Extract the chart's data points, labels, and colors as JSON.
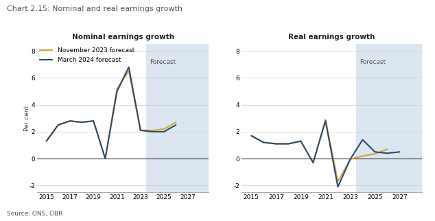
{
  "title": "Chart 2.15: Nominal and real earnings growth",
  "subtitle_left": "Nominal earnings growth",
  "subtitle_right": "Real earnings growth",
  "ylabel": "Per cent",
  "source": "Source: ONS, OBR",
  "forecast_label": "Forecast",
  "forecast_start": 2023.5,
  "xlim": [
    2014.2,
    2028.8
  ],
  "ylim": [
    -2.5,
    8.5
  ],
  "yticks": [
    -2,
    0,
    2,
    4,
    6,
    8
  ],
  "xticks": [
    2015,
    2017,
    2019,
    2021,
    2023,
    2025,
    2027
  ],
  "nom_nov_x": [
    2015,
    2016,
    2017,
    2018,
    2019,
    2020,
    2021,
    2022,
    2023,
    2024,
    2025,
    2026,
    2027,
    2028
  ],
  "nom_nov_y": [
    1.3,
    2.5,
    2.8,
    2.7,
    2.8,
    0.0,
    5.2,
    6.5,
    2.1,
    2.1,
    2.2,
    2.7,
    null,
    null
  ],
  "nom_mar_x": [
    2015,
    2016,
    2017,
    2018,
    2019,
    2020,
    2021,
    2022,
    2023,
    2024,
    2025,
    2026,
    2027,
    2028
  ],
  "nom_mar_y": [
    1.3,
    2.5,
    2.8,
    2.7,
    2.8,
    0.0,
    5.0,
    6.8,
    2.1,
    2.0,
    2.0,
    2.5,
    null,
    null
  ],
  "real_nov_x": [
    2015,
    2016,
    2017,
    2018,
    2019,
    2020,
    2021,
    2022,
    2023,
    2024,
    2025,
    2026,
    2027,
    2028
  ],
  "real_nov_y": [
    1.7,
    1.2,
    1.1,
    1.1,
    1.3,
    -0.3,
    2.9,
    -1.7,
    -0.05,
    0.2,
    0.35,
    0.7,
    null,
    null
  ],
  "real_mar_x": [
    2015,
    2016,
    2017,
    2018,
    2019,
    2020,
    2021,
    2022,
    2023,
    2024,
    2025,
    2026,
    2027,
    2028
  ],
  "real_mar_y": [
    1.7,
    1.2,
    1.1,
    1.1,
    1.3,
    -0.3,
    2.8,
    -2.1,
    -0.05,
    1.4,
    0.5,
    0.4,
    0.5,
    null
  ],
  "color_nov": "#d4a933",
  "color_mar": "#2d4a6b",
  "forecast_bg": "#dce6f0",
  "background": "#ffffff",
  "line_width": 1.5,
  "legend_label_nov": "November 2023 forecast",
  "legend_label_mar": "March 2024 forecast"
}
